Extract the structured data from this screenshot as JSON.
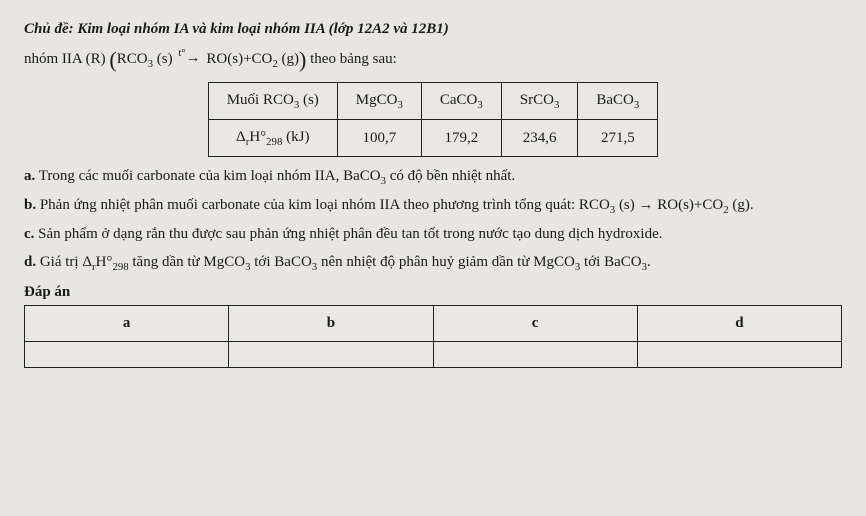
{
  "title": "Chủ đề: Kim loại nhóm IA và kim loại nhóm IIA (lớp 12A2 và 12B1)",
  "reaction_prefix": "nhóm IIA (R)",
  "reaction_left": "RCO",
  "reaction_state_s": "(s)",
  "arrow_top": "t°",
  "reaction_right_RO": "RO",
  "reaction_plus": "+",
  "reaction_CO2": "CO",
  "reaction_state_g": "(g)",
  "reaction_suffix": "theo bảng sau:",
  "table": {
    "row1": {
      "c0": "Muối RCO₃ (s)",
      "c1": "MgCO₃",
      "c2": "CaCO₃",
      "c3": "SrCO₃",
      "c4": "BaCO₃"
    },
    "row2": {
      "c0": "ΔᵣH°₂₉₈ (kJ)",
      "c1": "100,7",
      "c2": "179,2",
      "c3": "234,6",
      "c4": "271,5"
    }
  },
  "items": {
    "a": {
      "label": "a.",
      "text": " Trong các muối carbonate của kim loại nhóm IIA, BaCO₃ có độ bền nhiệt nhất."
    },
    "b": {
      "label": "b.",
      "text": " Phản ứng nhiệt phân muối carbonate của kim loại nhóm IIA theo phương trình tổng quát: RCO₃ (s) → RO(s) + CO₂ (g)."
    },
    "c": {
      "label": "c.",
      "text": " Sản phẩm ở dạng rắn thu được sau phản ứng nhiệt phân đều tan tốt trong nước tạo dung dịch hydroxide."
    },
    "d": {
      "label": "d.",
      "text": " Giá trị ΔᵣH°₂₉₈ tăng dần từ MgCO₃ tới BaCO₃ nên nhiệt độ phân huỷ giảm dần từ MgCO₃ tới BaCO₃."
    }
  },
  "dapan_label": "Đáp án",
  "answers": {
    "a": "a",
    "b": "b",
    "c": "c",
    "d": "d"
  },
  "style": {
    "page_bg": "#e8e6e0",
    "text_color": "#1a1a1a",
    "border_color": "#222222",
    "cell_bg": "#eae8e2",
    "title_fontsize_pt": 12,
    "body_fontsize_pt": 12,
    "font_family": "Times New Roman",
    "data_table_cols": 5,
    "ans_table_cols": 4
  }
}
